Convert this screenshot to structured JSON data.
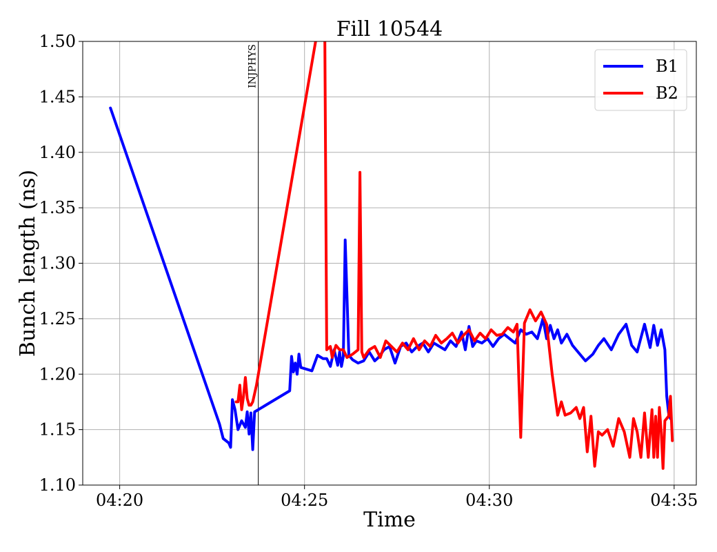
{
  "chart_data": {
    "type": "line",
    "title": "Fill 10544",
    "xlabel": "Time",
    "ylabel": "Bunch length (ns)",
    "x_unit": "minutes after 04:00",
    "xlim": [
      19.0,
      35.6
    ],
    "ylim": [
      1.1,
      1.5
    ],
    "xticks": [
      {
        "value": 20,
        "label": "04:20"
      },
      {
        "value": 25,
        "label": "04:25"
      },
      {
        "value": 30,
        "label": "04:30"
      },
      {
        "value": 35,
        "label": "04:35"
      }
    ],
    "yticks": [
      {
        "value": 1.1,
        "label": "1.10"
      },
      {
        "value": 1.15,
        "label": "1.15"
      },
      {
        "value": 1.2,
        "label": "1.20"
      },
      {
        "value": 1.25,
        "label": "1.25"
      },
      {
        "value": 1.3,
        "label": "1.30"
      },
      {
        "value": 1.35,
        "label": "1.35"
      },
      {
        "value": 1.4,
        "label": "1.40"
      },
      {
        "value": 1.45,
        "label": "1.45"
      },
      {
        "value": 1.5,
        "label": "1.50"
      }
    ],
    "grid": true,
    "legend_position": "top-right",
    "annotations": [
      {
        "type": "vline",
        "x": 23.75,
        "label": "INJPHYS",
        "color": "#000000"
      }
    ],
    "series": [
      {
        "name": "B1",
        "color": "#0000ff",
        "x": [
          19.75,
          22.7,
          22.8,
          22.95,
          23.0,
          23.05,
          23.12,
          23.2,
          23.3,
          23.4,
          23.45,
          23.5,
          23.55,
          23.6,
          23.65,
          24.6,
          24.65,
          24.7,
          24.75,
          24.8,
          24.85,
          24.9,
          25.0,
          25.2,
          25.35,
          25.5,
          25.6,
          25.7,
          25.8,
          25.9,
          25.95,
          26.0,
          26.05,
          26.1,
          26.2,
          26.3,
          26.45,
          26.6,
          26.75,
          26.9,
          27.0,
          27.15,
          27.3,
          27.45,
          27.6,
          27.75,
          27.9,
          28.05,
          28.2,
          28.35,
          28.5,
          28.65,
          28.8,
          28.95,
          29.1,
          29.25,
          29.35,
          29.45,
          29.55,
          29.65,
          29.8,
          29.95,
          30.1,
          30.25,
          30.4,
          30.55,
          30.7,
          30.85,
          31.0,
          31.15,
          31.3,
          31.45,
          31.55,
          31.65,
          31.75,
          31.85,
          31.95,
          32.1,
          32.25,
          32.4,
          32.6,
          32.8,
          32.95,
          33.1,
          33.3,
          33.5,
          33.7,
          33.85,
          34.0,
          34.2,
          34.35,
          34.45,
          34.55,
          34.65,
          34.75,
          34.8,
          34.85,
          34.9
        ],
        "y": [
          1.44,
          1.155,
          1.142,
          1.138,
          1.134,
          1.177,
          1.168,
          1.15,
          1.158,
          1.152,
          1.166,
          1.146,
          1.165,
          1.132,
          1.166,
          1.185,
          1.216,
          1.202,
          1.21,
          1.2,
          1.218,
          1.206,
          1.205,
          1.203,
          1.217,
          1.214,
          1.214,
          1.207,
          1.222,
          1.208,
          1.22,
          1.207,
          1.216,
          1.321,
          1.217,
          1.213,
          1.21,
          1.212,
          1.22,
          1.212,
          1.215,
          1.222,
          1.225,
          1.21,
          1.225,
          1.228,
          1.22,
          1.225,
          1.228,
          1.22,
          1.228,
          1.225,
          1.222,
          1.23,
          1.225,
          1.238,
          1.222,
          1.243,
          1.225,
          1.23,
          1.228,
          1.232,
          1.225,
          1.232,
          1.236,
          1.232,
          1.228,
          1.24,
          1.236,
          1.238,
          1.232,
          1.25,
          1.232,
          1.244,
          1.232,
          1.24,
          1.228,
          1.236,
          1.226,
          1.22,
          1.212,
          1.218,
          1.226,
          1.232,
          1.222,
          1.236,
          1.245,
          1.226,
          1.22,
          1.245,
          1.224,
          1.244,
          1.226,
          1.24,
          1.222,
          1.18,
          1.165,
          1.16
        ]
      },
      {
        "name": "B2",
        "color": "#ff0000",
        "x": [
          23.15,
          23.2,
          23.25,
          23.3,
          23.35,
          23.4,
          23.45,
          23.5,
          23.55,
          23.6,
          23.7,
          25.3,
          25.45,
          25.55,
          25.6,
          25.7,
          25.75,
          25.85,
          25.95,
          26.05,
          26.15,
          26.3,
          26.45,
          26.5,
          26.55,
          26.6,
          26.75,
          26.9,
          27.05,
          27.2,
          27.35,
          27.5,
          27.65,
          27.8,
          27.95,
          28.1,
          28.25,
          28.4,
          28.55,
          28.7,
          28.85,
          29.0,
          29.15,
          29.3,
          29.45,
          29.6,
          29.75,
          29.9,
          30.05,
          30.2,
          30.35,
          30.5,
          30.65,
          30.75,
          30.85,
          30.95,
          31.1,
          31.25,
          31.4,
          31.55,
          31.7,
          31.85,
          31.95,
          32.05,
          32.2,
          32.35,
          32.45,
          32.55,
          32.65,
          32.75,
          32.85,
          32.95,
          33.05,
          33.2,
          33.35,
          33.5,
          33.65,
          33.8,
          33.9,
          34.0,
          34.1,
          34.2,
          34.3,
          34.4,
          34.45,
          34.5,
          34.55,
          34.6,
          34.65,
          34.7,
          34.75,
          34.8,
          34.85,
          34.9,
          34.95
        ],
        "y": [
          1.175,
          1.175,
          1.19,
          1.168,
          1.18,
          1.197,
          1.178,
          1.172,
          1.172,
          1.175,
          1.19,
          1.5,
          1.51,
          1.5,
          1.222,
          1.225,
          1.215,
          1.226,
          1.222,
          1.222,
          1.215,
          1.218,
          1.222,
          1.382,
          1.22,
          1.215,
          1.222,
          1.225,
          1.215,
          1.23,
          1.225,
          1.22,
          1.228,
          1.222,
          1.232,
          1.222,
          1.23,
          1.225,
          1.235,
          1.228,
          1.232,
          1.237,
          1.228,
          1.235,
          1.24,
          1.23,
          1.237,
          1.232,
          1.24,
          1.235,
          1.236,
          1.242,
          1.238,
          1.245,
          1.143,
          1.246,
          1.258,
          1.248,
          1.256,
          1.245,
          1.2,
          1.163,
          1.175,
          1.163,
          1.165,
          1.17,
          1.16,
          1.17,
          1.13,
          1.162,
          1.117,
          1.148,
          1.145,
          1.15,
          1.135,
          1.16,
          1.148,
          1.125,
          1.16,
          1.148,
          1.125,
          1.165,
          1.125,
          1.168,
          1.125,
          1.162,
          1.125,
          1.17,
          1.148,
          1.115,
          1.158,
          1.16,
          1.162,
          1.18,
          1.14
        ]
      }
    ]
  }
}
